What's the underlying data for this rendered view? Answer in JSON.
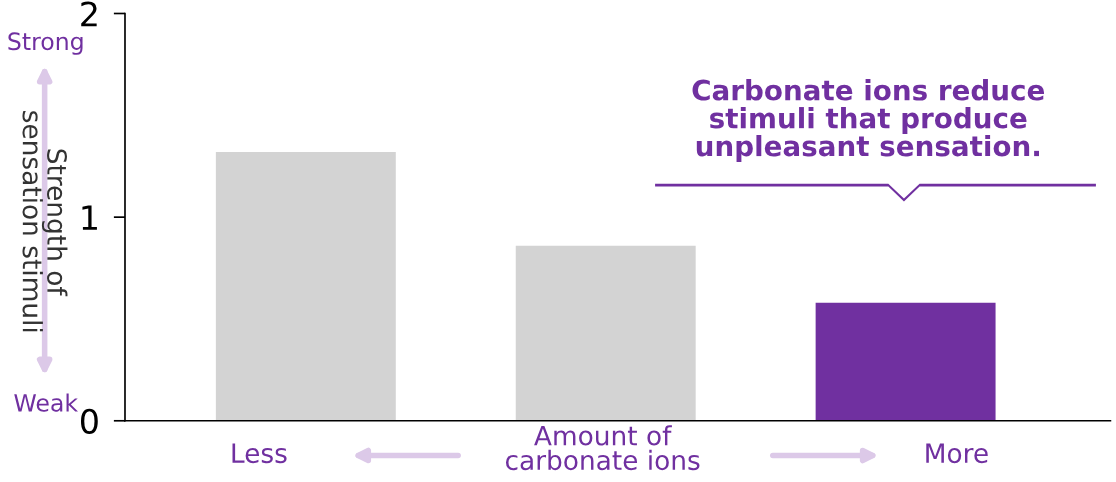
{
  "chart_data": {
    "type": "bar",
    "categories": [
      null,
      null,
      null
    ],
    "values": [
      1.32,
      0.86,
      0.58
    ],
    "colors": [
      "#d3d3d3",
      "#d3d3d3",
      "#7030a0"
    ],
    "xlabel": "Amount of\ncarbonate ions",
    "ylabel": "Strength of\nsensation stimuli",
    "ylim": [
      0,
      2
    ],
    "yticks": [
      0,
      1,
      2
    ],
    "grid": false,
    "annotations": [
      "Strong",
      "Weak",
      "Less",
      "More",
      "Carbonate ions reduce\nstimuli that produce\nunpleasant sensation."
    ]
  }
}
